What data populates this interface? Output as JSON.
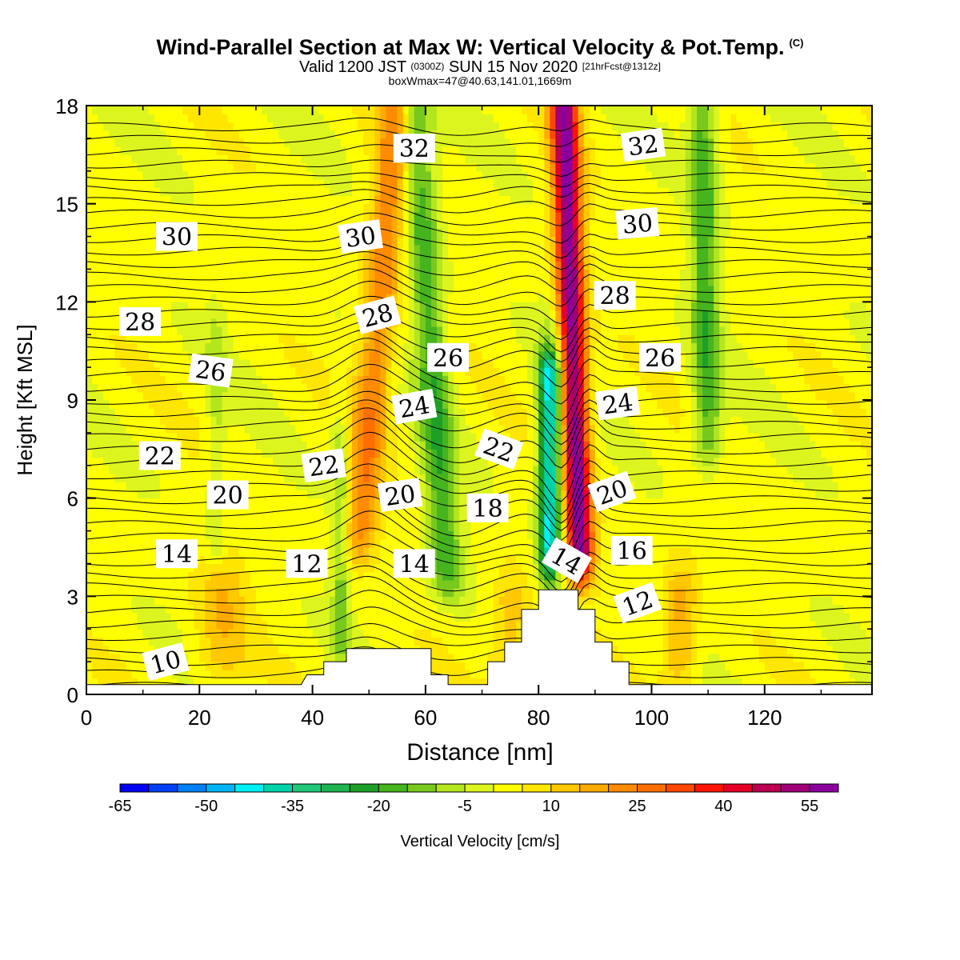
{
  "title": {
    "main": "Wind-Parallel Section at Max W: Vertical Velocity & Pot.Temp.",
    "main_mark": "(C)",
    "valid_prefix": "Valid 1200 JST",
    "valid_utc": "(0300Z)",
    "valid_date": "SUN 15 Nov 2020",
    "forecast": "[21hrFcst@1312z]",
    "box_info": "boxWmax=47@40.63,141.01,1669m"
  },
  "chart_data": {
    "type": "heatmap",
    "xlabel": "Distance [nm]",
    "ylabel": "Height [Kft MSL]",
    "xlim": [
      0,
      139
    ],
    "ylim": [
      0,
      18
    ],
    "x_ticks": [
      0,
      20,
      40,
      60,
      80,
      100,
      120
    ],
    "y_ticks": [
      0,
      3,
      6,
      9,
      12,
      15,
      18
    ],
    "colorbar": {
      "label": "Vertical Velocity [cm/s]",
      "min": -65,
      "step": 5,
      "tick_labels": [
        -65,
        -50,
        -35,
        -20,
        -5,
        10,
        25,
        40,
        55
      ],
      "colors": [
        "#0000f5",
        "#0040f5",
        "#0080f5",
        "#00b4f5",
        "#00f0f5",
        "#00d2aa",
        "#1ec878",
        "#1eb450",
        "#1ea028",
        "#46b41e",
        "#78c81e",
        "#b4e61e",
        "#dcf51e",
        "#ffff00",
        "#ffe600",
        "#ffc800",
        "#ffaa00",
        "#ff8c00",
        "#ff6e00",
        "#ff4600",
        "#ff1400",
        "#e60028",
        "#be0050",
        "#a00078",
        "#8c00a0"
      ]
    },
    "vertical_velocity_features": [
      {
        "label": "updraft",
        "x": 48,
        "y_bottom": 4.2,
        "y_top": 18,
        "tilt": 7,
        "halfwidth": 3.2,
        "peak": 22
      },
      {
        "label": "updraft",
        "x": 87.5,
        "y_bottom": 3.5,
        "y_top": 18,
        "tilt": -3,
        "halfwidth": 2.4,
        "peak": 56
      },
      {
        "label": "downdraft",
        "x": 64,
        "y_bottom": 3.0,
        "y_top": 18,
        "tilt": -6,
        "halfwidth": 3.0,
        "peak": -21
      },
      {
        "label": "downdraft",
        "x": 82,
        "y_bottom": 3.5,
        "y_top": 10,
        "tilt": 0,
        "halfwidth": 2.0,
        "peak": -45
      },
      {
        "label": "downdraft",
        "x": 110,
        "y_bottom": 7,
        "y_top": 18,
        "tilt": -1,
        "halfwidth": 2.5,
        "peak": -20
      },
      {
        "label": "downdraft",
        "x": 45,
        "y_bottom": 1,
        "y_top": 8,
        "tilt": 0,
        "halfwidth": 1.6,
        "peak": -14
      },
      {
        "label": "downdraft",
        "x": 23,
        "y_bottom": 4,
        "y_top": 11,
        "tilt": 0,
        "halfwidth": 1.6,
        "peak": -9
      },
      {
        "label": "updraft",
        "x": 24,
        "y_bottom": 0.4,
        "y_top": 3.5,
        "tilt": 0,
        "halfwidth": 4.5,
        "peak": 12
      },
      {
        "label": "updraft",
        "x": 105,
        "y_bottom": 0.4,
        "y_top": 3.2,
        "tilt": 0,
        "halfwidth": 3.0,
        "peak": 16
      },
      {
        "label": "updraft",
        "x": 75,
        "y_bottom": 0.4,
        "y_top": 3.0,
        "tilt": 0,
        "halfwidth": 3.5,
        "peak": 12
      }
    ],
    "terrain": [
      [
        0,
        0.3
      ],
      [
        38,
        0.3
      ],
      [
        39,
        0.6
      ],
      [
        42,
        0.6
      ],
      [
        42,
        1.0
      ],
      [
        46,
        1.0
      ],
      [
        46,
        1.4
      ],
      [
        61,
        1.4
      ],
      [
        61,
        0.6
      ],
      [
        64,
        0.6
      ],
      [
        64,
        0.3
      ],
      [
        71,
        0.3
      ],
      [
        71,
        1.0
      ],
      [
        74,
        1.0
      ],
      [
        74,
        1.6
      ],
      [
        77,
        1.6
      ],
      [
        77,
        2.6
      ],
      [
        80,
        2.6
      ],
      [
        80,
        3.2
      ],
      [
        87,
        3.2
      ],
      [
        87,
        2.6
      ],
      [
        90,
        2.6
      ],
      [
        90,
        1.6
      ],
      [
        93,
        1.6
      ],
      [
        93,
        1.0
      ],
      [
        96,
        1.0
      ],
      [
        96,
        0.3
      ],
      [
        139,
        0.3
      ]
    ],
    "theta_labels": [
      {
        "text": "10",
        "x": 14,
        "y": 1.0,
        "rot": -15
      },
      {
        "text": "14",
        "x": 16,
        "y": 4.3,
        "rot": 0
      },
      {
        "text": "20",
        "x": 25,
        "y": 6.1,
        "rot": 0
      },
      {
        "text": "22",
        "x": 13,
        "y": 7.3,
        "rot": 0
      },
      {
        "text": "26",
        "x": 22,
        "y": 9.9,
        "rot": 8
      },
      {
        "text": "28",
        "x": 9.5,
        "y": 11.4,
        "rot": 0
      },
      {
        "text": "30",
        "x": 16,
        "y": 14.0,
        "rot": 0
      },
      {
        "text": "12",
        "x": 39,
        "y": 4.0,
        "rot": 0
      },
      {
        "text": "22",
        "x": 42,
        "y": 7.0,
        "rot": -8
      },
      {
        "text": "20",
        "x": 55.5,
        "y": 6.1,
        "rot": -8
      },
      {
        "text": "14",
        "x": 58,
        "y": 4.0,
        "rot": 0
      },
      {
        "text": "24",
        "x": 58,
        "y": 8.8,
        "rot": -10
      },
      {
        "text": "28",
        "x": 51.5,
        "y": 11.6,
        "rot": -15
      },
      {
        "text": "30",
        "x": 48.5,
        "y": 14.0,
        "rot": -8
      },
      {
        "text": "26",
        "x": 64,
        "y": 10.3,
        "rot": 0
      },
      {
        "text": "32",
        "x": 58,
        "y": 16.7,
        "rot": 0
      },
      {
        "text": "22",
        "x": 73,
        "y": 7.5,
        "rot": 20
      },
      {
        "text": "18",
        "x": 71,
        "y": 5.7,
        "rot": 0
      },
      {
        "text": "14",
        "x": 85,
        "y": 4.1,
        "rot": 30
      },
      {
        "text": "20",
        "x": 93,
        "y": 6.2,
        "rot": -20
      },
      {
        "text": "24",
        "x": 94,
        "y": 8.9,
        "rot": -8
      },
      {
        "text": "28",
        "x": 93.5,
        "y": 12.2,
        "rot": 0
      },
      {
        "text": "30",
        "x": 97.5,
        "y": 14.4,
        "rot": -5
      },
      {
        "text": "32",
        "x": 98.5,
        "y": 16.8,
        "rot": -8
      },
      {
        "text": "26",
        "x": 101.5,
        "y": 10.3,
        "rot": 0
      },
      {
        "text": "16",
        "x": 96.5,
        "y": 4.4,
        "rot": 0
      },
      {
        "text": "12",
        "x": 97.5,
        "y": 2.8,
        "rot": -20
      }
    ]
  }
}
